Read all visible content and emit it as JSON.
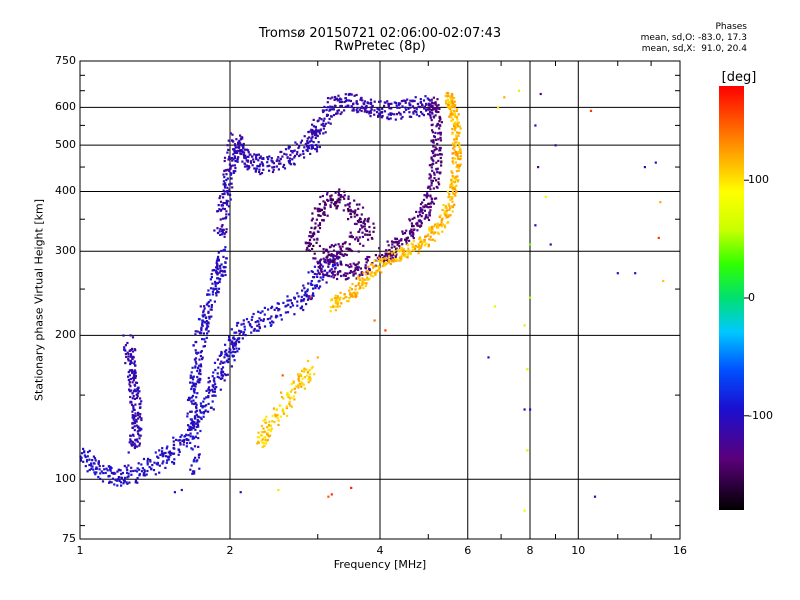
{
  "title_line1": "Tromsø 20150721 02:06:00-02:07:43",
  "title_line2": "RwPretec (8p)",
  "phases": {
    "label": "Phases",
    "o_stats": "mean, sd,O: -83.0, 17.3",
    "x_stats": "mean, sd,X:  91.0, 20.4"
  },
  "chart_data": {
    "type": "scatter",
    "x_label": "Frequency [MHz]",
    "y_label": "Stationary phase Virtual Height [km]",
    "x_scale": "log",
    "y_scale": "log",
    "x_range": [
      1,
      16
    ],
    "y_range": [
      75,
      750
    ],
    "x_ticks": [
      1,
      2,
      4,
      6,
      8,
      10,
      16
    ],
    "x_tick_labels": [
      "1",
      "2",
      "4",
      "6",
      "8",
      "10",
      "16"
    ],
    "y_ticks": [
      75,
      100,
      200,
      300,
      400,
      500,
      600,
      750
    ],
    "y_tick_labels": [
      "75",
      "100",
      "200",
      "300",
      "400",
      "500",
      "600",
      "750"
    ],
    "grid": true,
    "colorbar": {
      "label": "[deg]",
      "range": [
        -180,
        180
      ],
      "ticks": [
        100,
        0,
        -100
      ],
      "tick_labels": [
        "100",
        "0",
        "-100"
      ]
    },
    "traces": [
      {
        "desc": "lower trace",
        "phase": -100,
        "spread": 0.03,
        "points": [
          [
            1.0,
            112
          ],
          [
            1.1,
            104
          ],
          [
            1.2,
            101
          ],
          [
            1.35,
            104
          ],
          [
            1.5,
            112
          ],
          [
            1.65,
            124
          ],
          [
            1.8,
            145
          ],
          [
            1.9,
            165
          ],
          [
            2.0,
            185
          ],
          [
            2.1,
            205
          ],
          [
            2.4,
            220
          ],
          [
            2.8,
            240
          ],
          [
            3.0,
            265
          ],
          [
            3.3,
            290
          ]
        ]
      },
      {
        "desc": "high trace",
        "phase": -110,
        "spread": 0.03,
        "points": [
          [
            1.9,
            320
          ],
          [
            1.95,
            380
          ],
          [
            2.0,
            450
          ],
          [
            2.05,
            510
          ],
          [
            2.15,
            470
          ],
          [
            2.3,
            450
          ],
          [
            2.6,
            470
          ],
          [
            2.9,
            500
          ],
          [
            3.0,
            540
          ],
          [
            3.2,
            600
          ],
          [
            3.5,
            620
          ],
          [
            3.8,
            600
          ],
          [
            4.2,
            590
          ],
          [
            4.7,
            600
          ],
          [
            5.1,
            610
          ]
        ]
      },
      {
        "desc": "vertical band",
        "phase": -110,
        "spread": 0.025,
        "points": [
          [
            1.25,
            195
          ],
          [
            1.27,
            170
          ],
          [
            1.29,
            150
          ],
          [
            1.3,
            130
          ],
          [
            1.28,
            115
          ]
        ]
      },
      {
        "desc": "low vertical",
        "phase": -100,
        "spread": 0.025,
        "points": [
          [
            1.7,
            105
          ],
          [
            1.68,
            135
          ],
          [
            1.7,
            165
          ],
          [
            1.75,
            200
          ],
          [
            1.8,
            230
          ],
          [
            1.9,
            270
          ],
          [
            1.95,
            300
          ]
        ]
      },
      {
        "desc": "inner loop",
        "phase": -140,
        "spread": 0.03,
        "points": [
          [
            2.9,
            300
          ],
          [
            3.0,
            350
          ],
          [
            3.2,
            390
          ],
          [
            3.5,
            370
          ],
          [
            3.8,
            330
          ],
          [
            3.3,
            300
          ],
          [
            3.1,
            290
          ]
        ]
      },
      {
        "desc": "mid purple",
        "phase": -135,
        "spread": 0.025,
        "points": [
          [
            3.0,
            280
          ],
          [
            3.4,
            270
          ],
          [
            3.8,
            280
          ],
          [
            4.2,
            300
          ],
          [
            4.6,
            330
          ],
          [
            4.9,
            360
          ],
          [
            5.1,
            400
          ],
          [
            5.2,
            480
          ],
          [
            5.2,
            560
          ],
          [
            5.1,
            620
          ]
        ]
      },
      {
        "desc": "yellow x-trace",
        "phase": 115,
        "spread": 0.02,
        "points": [
          [
            3.2,
            230
          ],
          [
            3.5,
            245
          ],
          [
            3.8,
            270
          ],
          [
            4.2,
            290
          ],
          [
            4.6,
            300
          ],
          [
            5.0,
            320
          ],
          [
            5.4,
            350
          ],
          [
            5.6,
            400
          ],
          [
            5.7,
            460
          ],
          [
            5.7,
            530
          ],
          [
            5.6,
            600
          ],
          [
            5.5,
            640
          ]
        ]
      },
      {
        "desc": "low yellow",
        "phase": 110,
        "spread": 0.03,
        "points": [
          [
            2.3,
            120
          ],
          [
            2.4,
            130
          ],
          [
            2.7,
            155
          ],
          [
            2.9,
            170
          ]
        ]
      }
    ],
    "scatter_points": [
      [
        3.15,
        92,
        150
      ],
      [
        3.2,
        93,
        165
      ],
      [
        2.5,
        95,
        100
      ],
      [
        2.1,
        94,
        -100
      ],
      [
        1.55,
        94,
        -100
      ],
      [
        1.6,
        95,
        -95
      ],
      [
        7.8,
        86,
        80
      ],
      [
        7.9,
        115,
        60
      ],
      [
        7.8,
        140,
        -100
      ],
      [
        8.0,
        140,
        -100
      ],
      [
        7.9,
        170,
        60
      ],
      [
        7.8,
        210,
        60
      ],
      [
        8.0,
        240,
        50
      ],
      [
        8.0,
        310,
        40
      ],
      [
        8.3,
        450,
        -130
      ],
      [
        8.2,
        550,
        -100
      ],
      [
        8.4,
        640,
        -130
      ],
      [
        7.6,
        650,
        60
      ],
      [
        6.9,
        600,
        100
      ],
      [
        7.1,
        630,
        120
      ],
      [
        10.6,
        590,
        160
      ],
      [
        14.3,
        460,
        -120
      ],
      [
        14.5,
        320,
        160
      ],
      [
        13.0,
        270,
        -110
      ],
      [
        12.0,
        270,
        -100
      ],
      [
        14.6,
        380,
        120
      ],
      [
        14.8,
        260,
        110
      ],
      [
        10.8,
        92,
        -110
      ],
      [
        6.6,
        180,
        -110
      ],
      [
        8.2,
        340,
        -100
      ],
      [
        4.1,
        205,
        160
      ],
      [
        3.9,
        215,
        140
      ],
      [
        2.9,
        240,
        170
      ],
      [
        2.55,
        165,
        150
      ],
      [
        3.0,
        180,
        120
      ],
      [
        6.8,
        230,
        70
      ],
      [
        8.8,
        310,
        -110
      ],
      [
        13.6,
        450,
        -100
      ],
      [
        8.6,
        390,
        80
      ],
      [
        9.0,
        500,
        -120
      ],
      [
        3.5,
        96,
        170
      ]
    ]
  }
}
